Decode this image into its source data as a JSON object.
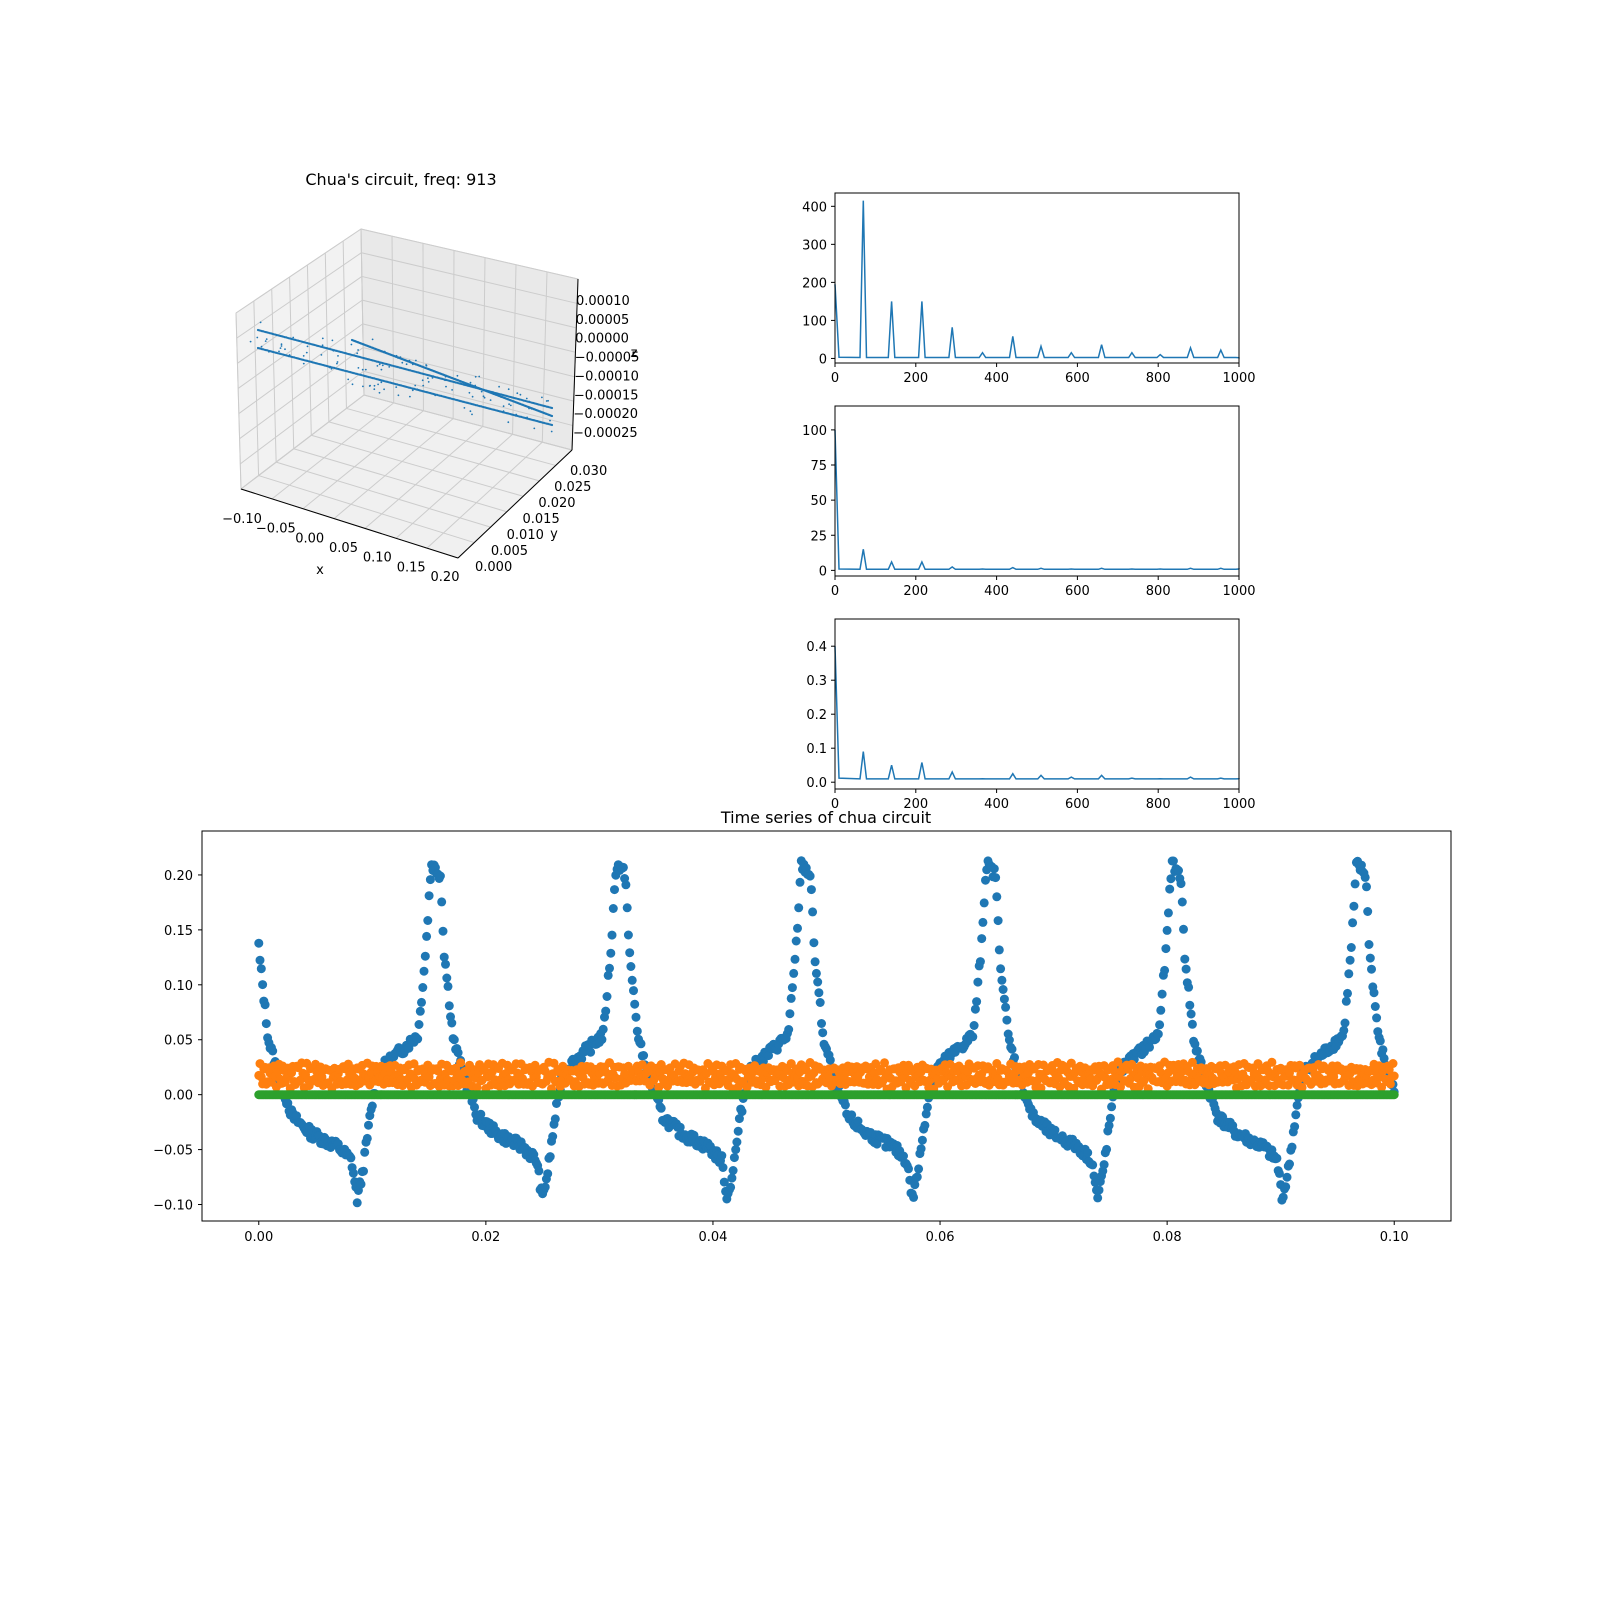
{
  "chart_data": [
    {
      "type": "scatter3d",
      "title": "Chua's circuit, freq: 913",
      "xlabel": "x",
      "ylabel": "y",
      "zlabel": "z",
      "xticks": [
        "−0.10",
        "−0.05",
        "0.00",
        "0.05",
        "0.10",
        "0.15",
        "0.20"
      ],
      "yticks": [
        "0.000",
        "0.005",
        "0.010",
        "0.015",
        "0.020",
        "0.025",
        "0.030"
      ],
      "zticks": [
        "0.00010",
        "0.00005",
        "0.00000",
        "−0.00005",
        "−0.00010",
        "−0.00015",
        "−0.00020",
        "−0.00025"
      ],
      "color": "#1f77b4",
      "grid": true
    },
    {
      "type": "line",
      "xlim": [
        0,
        1000
      ],
      "ylim": [
        -12,
        435
      ],
      "xticks": [
        "0",
        "200",
        "400",
        "600",
        "800",
        "1000"
      ],
      "yticks": [
        "0",
        "100",
        "200",
        "300",
        "400"
      ],
      "ytick_values": [
        0,
        100,
        200,
        300,
        400
      ],
      "color": "#1f77b4",
      "x": [
        0,
        10,
        70,
        140,
        215,
        290,
        365,
        440,
        510,
        585,
        660,
        735,
        805,
        880,
        955,
        1000
      ],
      "peaks": [
        195,
        3,
        415,
        150,
        150,
        82,
        15,
        58,
        32,
        15,
        36,
        15,
        10,
        28,
        22,
        2
      ]
    },
    {
      "type": "line",
      "xlim": [
        0,
        1000
      ],
      "ylim": [
        -4,
        117
      ],
      "xticks": [
        "0",
        "200",
        "400",
        "600",
        "800",
        "1000"
      ],
      "yticks": [
        "0",
        "25",
        "50",
        "75",
        "100"
      ],
      "ytick_values": [
        0,
        25,
        50,
        75,
        100
      ],
      "color": "#1f77b4",
      "x": [
        0,
        10,
        70,
        140,
        215,
        290,
        365,
        440,
        510,
        585,
        660,
        735,
        805,
        880,
        955,
        1000
      ],
      "peaks": [
        100,
        1,
        15,
        6,
        6,
        2.5,
        1,
        2,
        1.5,
        1,
        1.5,
        1,
        1,
        1.5,
        1.5,
        1
      ]
    },
    {
      "type": "line",
      "xlim": [
        0,
        1000
      ],
      "ylim": [
        -0.02,
        0.48
      ],
      "xticks": [
        "0",
        "200",
        "400",
        "600",
        "800",
        "1000"
      ],
      "yticks": [
        "0.0",
        "0.1",
        "0.2",
        "0.3",
        "0.4"
      ],
      "ytick_values": [
        0,
        0.1,
        0.2,
        0.3,
        0.4
      ],
      "color": "#1f77b4",
      "x": [
        0,
        10,
        70,
        140,
        215,
        290,
        365,
        440,
        510,
        585,
        660,
        735,
        805,
        880,
        955,
        1000
      ],
      "peaks": [
        0.4,
        0.012,
        0.09,
        0.05,
        0.058,
        0.03,
        0.01,
        0.025,
        0.02,
        0.015,
        0.02,
        0.012,
        0.01,
        0.015,
        0.012,
        0.01
      ]
    },
    {
      "type": "scatter",
      "title": "Time series of chua circuit",
      "xlim": [
        -0.005,
        0.105
      ],
      "ylim": [
        -0.115,
        0.24
      ],
      "xticks": [
        "0.00",
        "0.02",
        "0.04",
        "0.06",
        "0.08",
        "0.10"
      ],
      "xtick_values": [
        0,
        0.02,
        0.04,
        0.06,
        0.08,
        0.1
      ],
      "yticks": [
        "−0.10",
        "−0.05",
        "0.00",
        "0.05",
        "0.10",
        "0.15",
        "0.20"
      ],
      "ytick_values": [
        -0.1,
        -0.05,
        0,
        0.05,
        0.1,
        0.15,
        0.2
      ],
      "period": 0.0163,
      "x_range": [
        0,
        0.1
      ],
      "series": [
        {
          "color": "#1f77b4",
          "shape": [
            [
              0.0,
              0.2
            ],
            [
              0.02,
              0.13
            ],
            [
              0.07,
              0.05
            ],
            [
              0.12,
              0.02
            ],
            [
              0.2,
              -0.02
            ],
            [
              0.3,
              -0.035
            ],
            [
              0.45,
              -0.048
            ],
            [
              0.52,
              -0.06
            ],
            [
              0.55,
              -0.095
            ],
            [
              0.58,
              -0.07
            ],
            [
              0.62,
              -0.02
            ],
            [
              0.66,
              0.02
            ],
            [
              0.72,
              0.03
            ],
            [
              0.82,
              0.045
            ],
            [
              0.88,
              0.055
            ],
            [
              0.92,
              0.13
            ],
            [
              0.95,
              0.21
            ],
            [
              1.0,
              0.2
            ]
          ]
        },
        {
          "color": "#ff7f0e",
          "band": [
            0.005,
            0.03
          ]
        },
        {
          "color": "#2ca02c",
          "constant": 0.0
        }
      ]
    }
  ]
}
